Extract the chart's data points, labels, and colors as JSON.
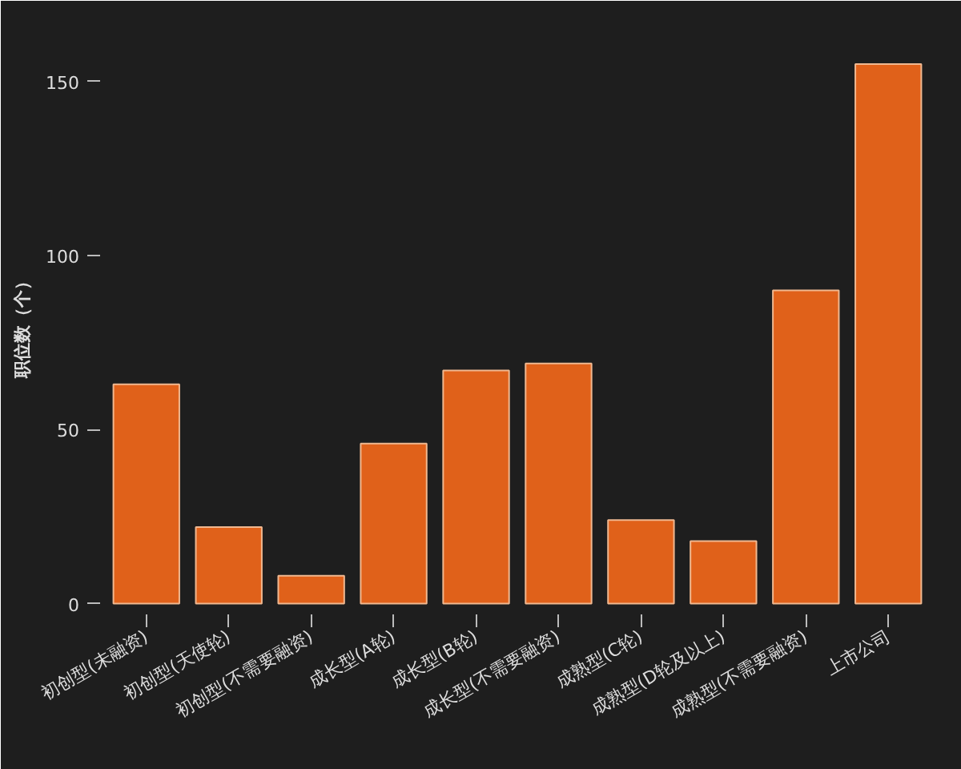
{
  "chart_data": {
    "type": "bar",
    "ylabel": "职位数（个）",
    "categories": [
      "初创型(未融资)",
      "初创型(天使轮)",
      "初创型(不需要融资)",
      "成长型(A轮)",
      "成长型(B轮)",
      "成长型(不需要融资)",
      "成熟型(C轮)",
      "成熟型(D轮及以上)",
      "成熟型(不需要融资)",
      "上市公司"
    ],
    "values": [
      63,
      22,
      8,
      46,
      67,
      69,
      24,
      18,
      90,
      155
    ],
    "color": "#e0611a",
    "ylim": [
      -4,
      164
    ],
    "yticks": [
      0,
      50,
      100,
      150
    ],
    "grid": false
  }
}
